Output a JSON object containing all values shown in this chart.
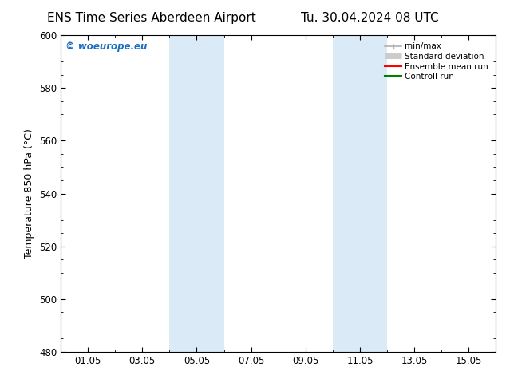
{
  "title_left": "ENS Time Series Aberdeen Airport",
  "title_right": "Tu. 30.04.2024 08 UTC",
  "ylabel": "Temperature 850 hPa (°C)",
  "ylim": [
    480,
    600
  ],
  "yticks": [
    480,
    500,
    520,
    540,
    560,
    580,
    600
  ],
  "xtick_labels": [
    "01.05",
    "03.05",
    "05.05",
    "07.05",
    "09.05",
    "11.05",
    "13.05",
    "15.05"
  ],
  "xtick_positions": [
    1,
    3,
    5,
    7,
    9,
    11,
    13,
    15
  ],
  "xlim": [
    0,
    16
  ],
  "shaded_regions": [
    {
      "x_start": 4,
      "x_end": 6,
      "color": "#daeaf6"
    },
    {
      "x_start": 10,
      "x_end": 12,
      "color": "#daeaf6"
    }
  ],
  "legend_items": [
    {
      "label": "min/max",
      "color": "#b0b0b0",
      "lw": 1.2
    },
    {
      "label": "Standard deviation",
      "color": "#cccccc",
      "lw": 5
    },
    {
      "label": "Ensemble mean run",
      "color": "#ff0000",
      "lw": 1.5
    },
    {
      "label": "Controll run",
      "color": "#008000",
      "lw": 1.5
    }
  ],
  "watermark_text": "© woeurope.eu",
  "watermark_color": "#1a6fbf",
  "background_color": "#ffffff",
  "spine_color": "#000000",
  "title_fontsize": 11,
  "label_fontsize": 9,
  "tick_fontsize": 8.5
}
